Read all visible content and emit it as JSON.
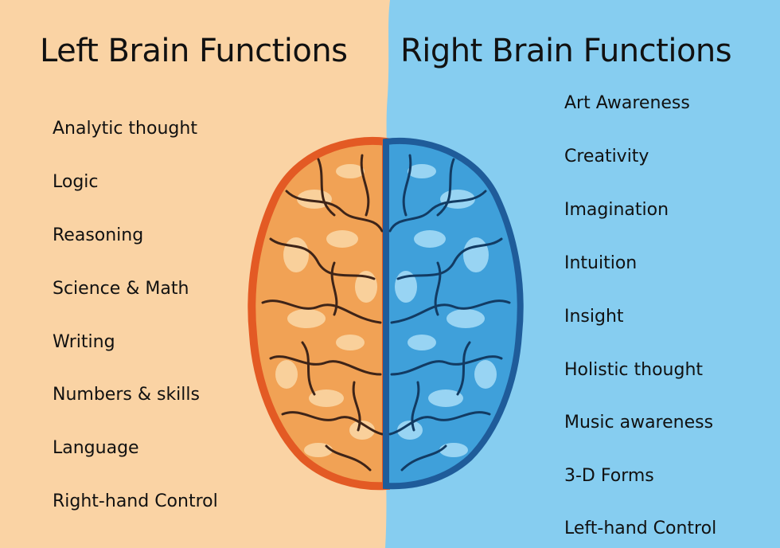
{
  "colors": {
    "left_background": "#FAD3A4",
    "right_background": "#86CDF0",
    "left_hemisphere": "#F1A255",
    "left_hemisphere_edge": "#E35A24",
    "right_hemisphere": "#3FA0DA",
    "right_hemisphere_edge": "#1F5C9A",
    "text": "#111111"
  },
  "left": {
    "title": "Left Brain Functions",
    "items": [
      {
        "label": "Analytic thought"
      },
      {
        "label": "Logic"
      },
      {
        "label": "Reasoning"
      },
      {
        "label": "Science & Math"
      },
      {
        "label": "Writing"
      },
      {
        "label": "Numbers & skills"
      },
      {
        "label": "Language"
      },
      {
        "label": "Right-hand Control"
      }
    ]
  },
  "right": {
    "title": "Right Brain Functions",
    "items": [
      {
        "label": "Art Awareness"
      },
      {
        "label": "Creativity"
      },
      {
        "label": "Imagination"
      },
      {
        "label": "Intuition"
      },
      {
        "label": "Insight"
      },
      {
        "label": "Holistic thought"
      },
      {
        "label": "Music awareness"
      },
      {
        "label": "3-D Forms"
      },
      {
        "label": "Left-hand Control"
      }
    ]
  }
}
